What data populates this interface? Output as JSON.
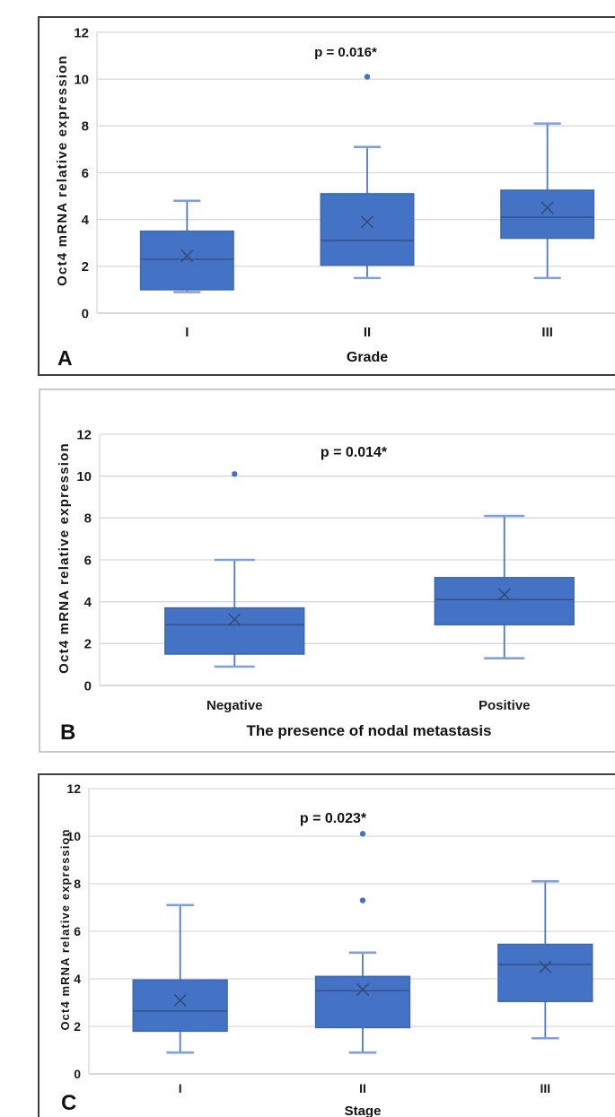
{
  "figure_title": "Oct4 mRNA relative expression box plots",
  "colors": {
    "box_fill": "#4472C4",
    "box_border": "#3E69B0",
    "median_line": "#35548C",
    "mean_marker": "#2F4A74",
    "whisker": "#5079BE",
    "whisker_cap": "#82A0D8",
    "outlier": "#4472C4",
    "gridline": "#D9D9D9",
    "axis_line": "#C4C4C4",
    "text": "#1B1B1B",
    "panel_border_dark": "#3E3E3E",
    "panel_border_light": "#C9C9C9"
  },
  "chart_data": [
    {
      "type": "box",
      "panel_label": "A",
      "p_value_label": "p = 0.016*",
      "xlabel": "Grade",
      "ylabel": "Oct4 mRNA relative expression",
      "categories": [
        "I",
        "II",
        "III"
      ],
      "ylim": [
        0,
        12
      ],
      "yticks": [
        0,
        2,
        4,
        6,
        8,
        10,
        12
      ],
      "grid": true,
      "legend": "none",
      "series": [
        {
          "category": "I",
          "whisker_low": 0.9,
          "q1": 1.0,
          "median": 2.3,
          "q3": 3.5,
          "whisker_high": 4.8,
          "mean": 2.45,
          "outliers": []
        },
        {
          "category": "II",
          "whisker_low": 1.5,
          "q1": 2.05,
          "median": 3.1,
          "q3": 5.1,
          "whisker_high": 7.1,
          "mean": 3.9,
          "outliers": [
            10.1
          ]
        },
        {
          "category": "III",
          "whisker_low": 1.5,
          "q1": 3.2,
          "median": 4.1,
          "q3": 5.25,
          "whisker_high": 8.1,
          "mean": 4.5,
          "outliers": []
        }
      ]
    },
    {
      "type": "box",
      "panel_label": "B",
      "p_value_label": "p = 0.014*",
      "xlabel": "The presence of nodal metastasis",
      "ylabel": "Oct4 mRNA relative expression",
      "categories": [
        "Negative",
        "Positive"
      ],
      "ylim": [
        0,
        12
      ],
      "yticks": [
        0,
        2,
        4,
        6,
        8,
        10,
        12
      ],
      "grid": true,
      "legend": "none",
      "series": [
        {
          "category": "Negative",
          "whisker_low": 0.9,
          "q1": 1.5,
          "median": 2.9,
          "q3": 3.7,
          "whisker_high": 6.0,
          "mean": 3.15,
          "outliers": [
            10.1
          ]
        },
        {
          "category": "Positive",
          "whisker_low": 1.3,
          "q1": 2.9,
          "median": 4.1,
          "q3": 5.15,
          "whisker_high": 8.1,
          "mean": 4.35,
          "outliers": []
        }
      ]
    },
    {
      "type": "box",
      "panel_label": "C",
      "p_value_label": "p = 0.023*",
      "xlabel": "Stage",
      "ylabel": "Oct4 mRNA relative expression",
      "categories": [
        "I",
        "II",
        "III"
      ],
      "ylim": [
        0,
        12
      ],
      "yticks": [
        0,
        2,
        4,
        6,
        8,
        10,
        12
      ],
      "grid": true,
      "legend": "none",
      "series": [
        {
          "category": "I",
          "whisker_low": 0.9,
          "q1": 1.8,
          "median": 2.65,
          "q3": 3.95,
          "whisker_high": 7.1,
          "mean": 3.1,
          "outliers": []
        },
        {
          "category": "II",
          "whisker_low": 0.9,
          "q1": 1.95,
          "median": 3.5,
          "q3": 4.1,
          "whisker_high": 5.1,
          "mean": 3.55,
          "outliers": [
            7.3,
            10.1
          ]
        },
        {
          "category": "III",
          "whisker_low": 1.5,
          "q1": 3.05,
          "median": 4.6,
          "q3": 5.45,
          "whisker_high": 8.1,
          "mean": 4.5,
          "outliers": []
        }
      ]
    }
  ]
}
